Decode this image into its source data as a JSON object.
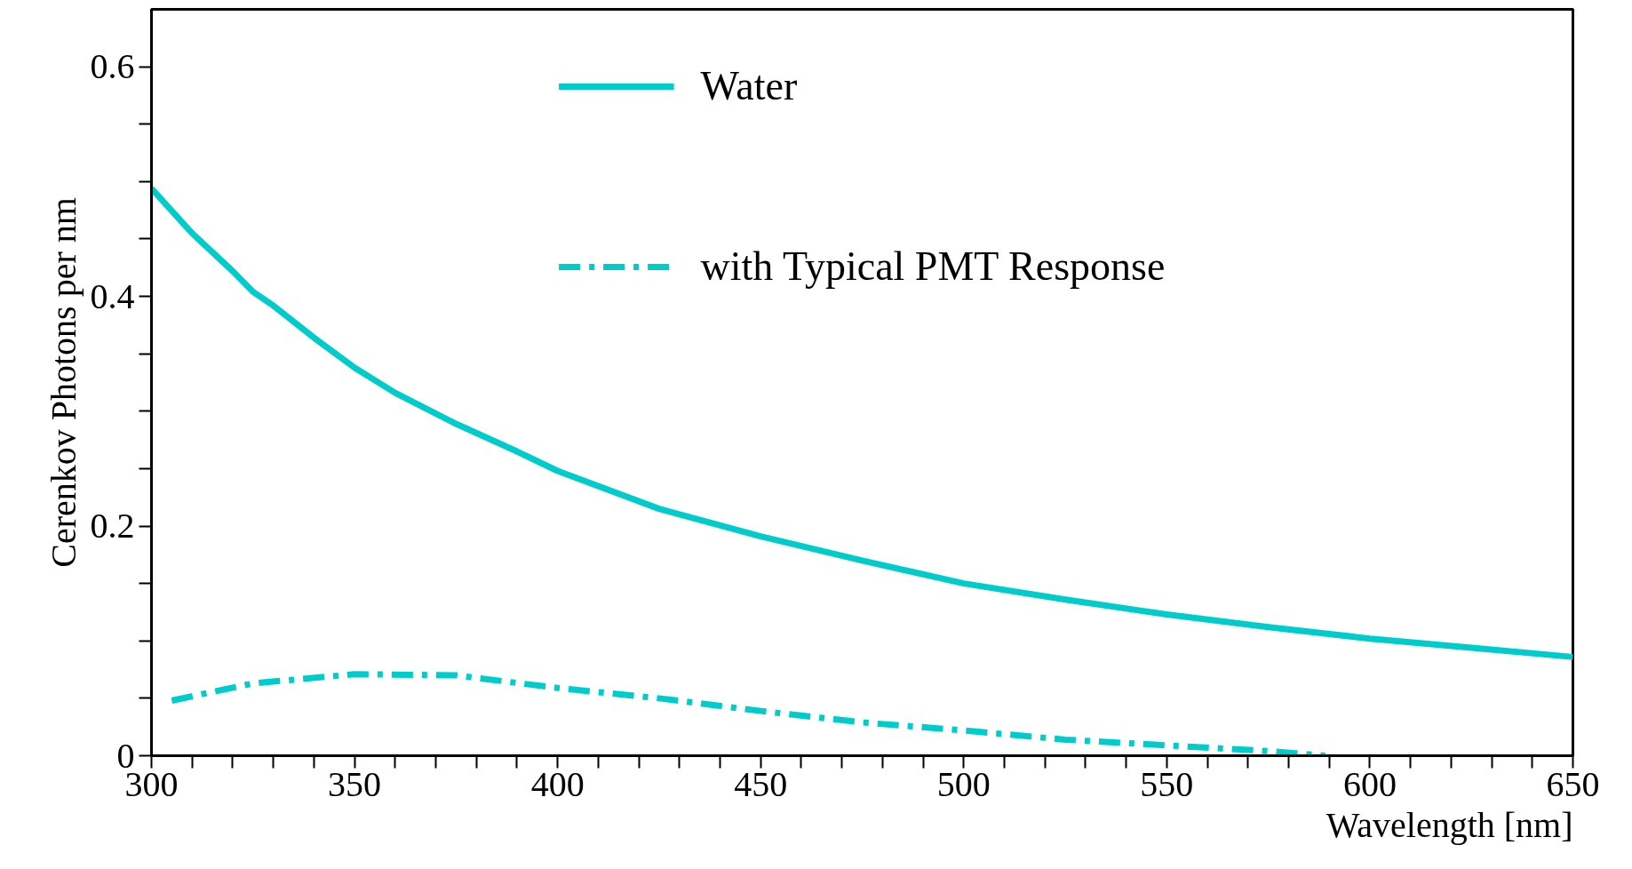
{
  "chart_data": {
    "type": "line",
    "xlabel": "Wavelength [nm]",
    "ylabel": "Cerenkov Photons per nm",
    "xlim": [
      300,
      650
    ],
    "ylim": [
      0,
      0.65
    ],
    "xticks": [
      300,
      {
        "value": 310,
        "label": null
      },
      {
        "value": 320,
        "label": null
      },
      {
        "value": 330,
        "label": null
      },
      {
        "value": 340,
        "label": null
      },
      350,
      {
        "value": 360,
        "label": null
      },
      {
        "value": 370,
        "label": null
      },
      {
        "value": 380,
        "label": null
      },
      {
        "value": 390,
        "label": null
      },
      400,
      {
        "value": 410,
        "label": null
      },
      {
        "value": 420,
        "label": null
      },
      {
        "value": 430,
        "label": null
      },
      {
        "value": 440,
        "label": null
      },
      450,
      {
        "value": 460,
        "label": null
      },
      {
        "value": 470,
        "label": null
      },
      {
        "value": 480,
        "label": null
      },
      {
        "value": 490,
        "label": null
      },
      500,
      {
        "value": 510,
        "label": null
      },
      {
        "value": 520,
        "label": null
      },
      {
        "value": 530,
        "label": null
      },
      {
        "value": 540,
        "label": null
      },
      550,
      {
        "value": 560,
        "label": null
      },
      {
        "value": 570,
        "label": null
      },
      {
        "value": 580,
        "label": null
      },
      {
        "value": 590,
        "label": null
      },
      600,
      {
        "value": 610,
        "label": null
      },
      {
        "value": 620,
        "label": null
      },
      {
        "value": 630,
        "label": null
      },
      {
        "value": 640,
        "label": null
      },
      650
    ],
    "yticks": [
      {
        "value": 0,
        "label": "0"
      },
      {
        "value": 0.05,
        "label": null
      },
      {
        "value": 0.1,
        "label": null
      },
      {
        "value": 0.15,
        "label": null
      },
      0.2,
      {
        "value": 0.25,
        "label": null
      },
      {
        "value": 0.3,
        "label": null
      },
      {
        "value": 0.35,
        "label": null
      },
      0.4,
      {
        "value": 0.45,
        "label": null
      },
      {
        "value": 0.5,
        "label": null
      },
      {
        "value": 0.55,
        "label": null
      },
      0.6
    ],
    "grid": false,
    "legend": "top",
    "series": [
      {
        "name": "Water",
        "color": "#00cccc",
        "line_style": "solid",
        "x": [
          300,
          310,
          320,
          325,
          330,
          340,
          350,
          360,
          375,
          390,
          400,
          425,
          450,
          475,
          500,
          525,
          550,
          575,
          600,
          625,
          650
        ],
        "values": [
          0.494,
          0.455,
          0.422,
          0.404,
          0.392,
          0.364,
          0.338,
          0.316,
          0.289,
          0.265,
          0.248,
          0.215,
          0.191,
          0.17,
          0.15,
          0.136,
          0.123,
          0.112,
          0.102,
          0.094,
          0.086
        ]
      },
      {
        "name": "with Typical PMT Response",
        "color": "#00cccc",
        "line_style": "dashdot",
        "x": [
          305,
          325,
          350,
          375,
          400,
          425,
          450,
          475,
          500,
          525,
          550,
          575,
          589
        ],
        "values": [
          0.048,
          0.063,
          0.071,
          0.07,
          0.059,
          0.05,
          0.039,
          0.029,
          0.022,
          0.014,
          0.009,
          0.004,
          0.0
        ]
      }
    ]
  }
}
